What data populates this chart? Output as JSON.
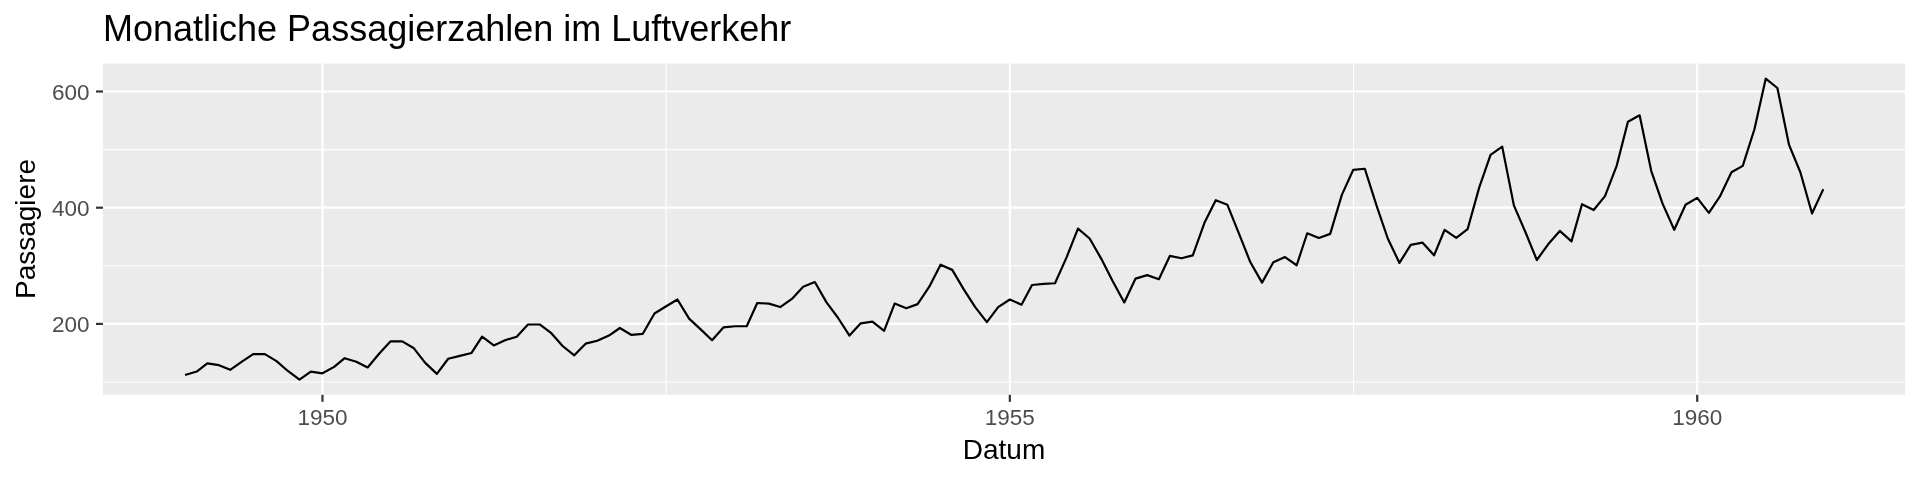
{
  "chart_data": {
    "type": "line",
    "title": "Monatliche Passagierzahlen im Luftverkehr",
    "xlabel": "Datum",
    "ylabel": "Passagiere",
    "x": [
      "1949-01",
      "1949-02",
      "1949-03",
      "1949-04",
      "1949-05",
      "1949-06",
      "1949-07",
      "1949-08",
      "1949-09",
      "1949-10",
      "1949-11",
      "1949-12",
      "1950-01",
      "1950-02",
      "1950-03",
      "1950-04",
      "1950-05",
      "1950-06",
      "1950-07",
      "1950-08",
      "1950-09",
      "1950-10",
      "1950-11",
      "1950-12",
      "1951-01",
      "1951-02",
      "1951-03",
      "1951-04",
      "1951-05",
      "1951-06",
      "1951-07",
      "1951-08",
      "1951-09",
      "1951-10",
      "1951-11",
      "1951-12",
      "1952-01",
      "1952-02",
      "1952-03",
      "1952-04",
      "1952-05",
      "1952-06",
      "1952-07",
      "1952-08",
      "1952-09",
      "1952-10",
      "1952-11",
      "1952-12",
      "1953-01",
      "1953-02",
      "1953-03",
      "1953-04",
      "1953-05",
      "1953-06",
      "1953-07",
      "1953-08",
      "1953-09",
      "1953-10",
      "1953-11",
      "1953-12",
      "1954-01",
      "1954-02",
      "1954-03",
      "1954-04",
      "1954-05",
      "1954-06",
      "1954-07",
      "1954-08",
      "1954-09",
      "1954-10",
      "1954-11",
      "1954-12",
      "1955-01",
      "1955-02",
      "1955-03",
      "1955-04",
      "1955-05",
      "1955-06",
      "1955-07",
      "1955-08",
      "1955-09",
      "1955-10",
      "1955-11",
      "1955-12",
      "1956-01",
      "1956-02",
      "1956-03",
      "1956-04",
      "1956-05",
      "1956-06",
      "1956-07",
      "1956-08",
      "1956-09",
      "1956-10",
      "1956-11",
      "1956-12",
      "1957-01",
      "1957-02",
      "1957-03",
      "1957-04",
      "1957-05",
      "1957-06",
      "1957-07",
      "1957-08",
      "1957-09",
      "1957-10",
      "1957-11",
      "1957-12",
      "1958-01",
      "1958-02",
      "1958-03",
      "1958-04",
      "1958-05",
      "1958-06",
      "1958-07",
      "1958-08",
      "1958-09",
      "1958-10",
      "1958-11",
      "1958-12",
      "1959-01",
      "1959-02",
      "1959-03",
      "1959-04",
      "1959-05",
      "1959-06",
      "1959-07",
      "1959-08",
      "1959-09",
      "1959-10",
      "1959-11",
      "1959-12",
      "1960-01",
      "1960-02",
      "1960-03",
      "1960-04",
      "1960-05",
      "1960-06",
      "1960-07",
      "1960-08",
      "1960-09",
      "1960-10",
      "1960-11",
      "1960-12"
    ],
    "values": [
      112,
      118,
      132,
      129,
      121,
      135,
      148,
      148,
      136,
      119,
      104,
      118,
      115,
      126,
      141,
      135,
      125,
      149,
      170,
      170,
      158,
      133,
      114,
      140,
      145,
      150,
      178,
      163,
      172,
      178,
      199,
      199,
      184,
      162,
      146,
      166,
      171,
      180,
      193,
      181,
      183,
      218,
      230,
      242,
      209,
      191,
      172,
      194,
      196,
      196,
      236,
      235,
      229,
      243,
      264,
      272,
      237,
      211,
      180,
      201,
      204,
      188,
      235,
      227,
      234,
      264,
      302,
      293,
      259,
      229,
      203,
      229,
      242,
      233,
      267,
      269,
      270,
      315,
      364,
      347,
      312,
      274,
      237,
      278,
      284,
      277,
      317,
      313,
      318,
      374,
      413,
      405,
      355,
      306,
      271,
      306,
      315,
      301,
      356,
      348,
      355,
      422,
      465,
      467,
      404,
      347,
      305,
      336,
      340,
      318,
      362,
      348,
      363,
      435,
      491,
      505,
      404,
      359,
      310,
      337,
      360,
      342,
      406,
      396,
      420,
      472,
      548,
      559,
      463,
      407,
      362,
      405,
      417,
      391,
      419,
      461,
      472,
      535,
      622,
      606,
      508,
      461,
      390,
      432
    ],
    "color": "#000000",
    "xlim": [
      "1948-05-28",
      "1961-07-06"
    ],
    "xticks": [
      "1950",
      {
        "value": "1952-07-02",
        "label": null
      },
      "1955",
      {
        "value": "1957-07-02",
        "label": null
      },
      "1960"
    ],
    "ylim": [
      78,
      648
    ],
    "yticks": [
      {
        "value": 100,
        "label": null
      },
      200,
      {
        "value": 300,
        "label": null
      },
      400,
      {
        "value": 500,
        "label": null
      },
      600
    ],
    "grid": true
  }
}
